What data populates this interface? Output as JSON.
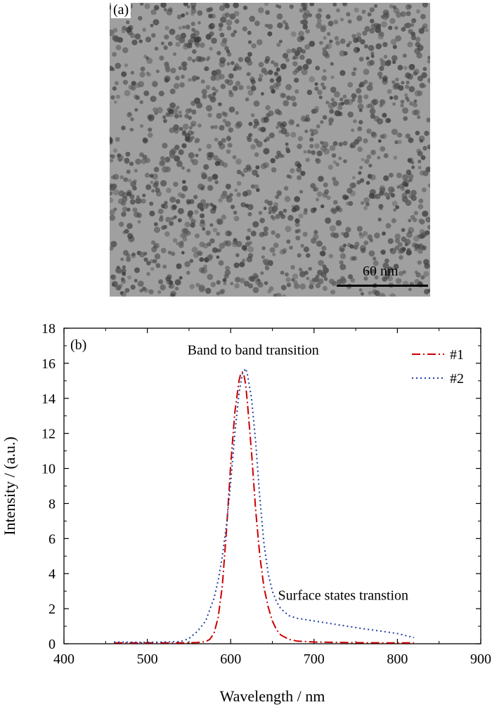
{
  "panel_a": {
    "label": "(a)",
    "scale_bar_text": "60 nm"
  },
  "chart_data": {
    "type": "line",
    "panel_label": "(b)",
    "xlabel": "Wavelength / nm",
    "ylabel": "Intensity / (a.u.)",
    "xlim": [
      400,
      900
    ],
    "ylim": [
      0,
      18
    ],
    "xticks": [
      400,
      500,
      600,
      700,
      800,
      900
    ],
    "yticks": [
      0,
      2,
      4,
      6,
      8,
      10,
      12,
      14,
      16,
      18
    ],
    "grid": false,
    "legend_position": "top-right",
    "annotations": [
      {
        "text": "Band to band transition",
        "x": 627,
        "y": 16.5
      },
      {
        "text": "Surface states transtion",
        "x": 735,
        "y": 2.5
      }
    ],
    "series": [
      {
        "name": "#1",
        "color": "#cc0000",
        "dash": "dashdot",
        "x": [
          460,
          500,
          540,
          560,
          570,
          575,
          580,
          585,
          590,
          595,
          600,
          605,
          610,
          612,
          614,
          616,
          618,
          620,
          625,
          630,
          635,
          640,
          645,
          650,
          655,
          660,
          670,
          680,
          700,
          750,
          800,
          820
        ],
        "y": [
          0.05,
          0.05,
          0.05,
          0.07,
          0.12,
          0.25,
          0.6,
          1.5,
          3.3,
          6.5,
          10.2,
          13.2,
          15.0,
          15.4,
          15.5,
          15.3,
          14.8,
          13.8,
          10.9,
          7.6,
          5.0,
          3.2,
          2.1,
          1.3,
          0.8,
          0.5,
          0.25,
          0.15,
          0.1,
          0.06,
          0.05,
          0.05
        ]
      },
      {
        "name": "#2",
        "color": "#1f3f9f",
        "dash": "dotted",
        "x": [
          460,
          500,
          540,
          550,
          560,
          570,
          580,
          585,
          590,
          595,
          600,
          605,
          610,
          614,
          618,
          620,
          625,
          630,
          635,
          640,
          645,
          650,
          655,
          660,
          670,
          680,
          700,
          720,
          740,
          760,
          780,
          800,
          820
        ],
        "y": [
          0.1,
          0.08,
          0.12,
          0.3,
          0.7,
          1.3,
          2.6,
          3.6,
          5.0,
          6.8,
          9.2,
          12.0,
          14.3,
          15.4,
          15.7,
          15.4,
          14.0,
          11.5,
          8.3,
          5.7,
          4.0,
          3.0,
          2.4,
          2.0,
          1.6,
          1.45,
          1.3,
          1.15,
          1.0,
          0.85,
          0.72,
          0.58,
          0.35
        ]
      }
    ]
  }
}
